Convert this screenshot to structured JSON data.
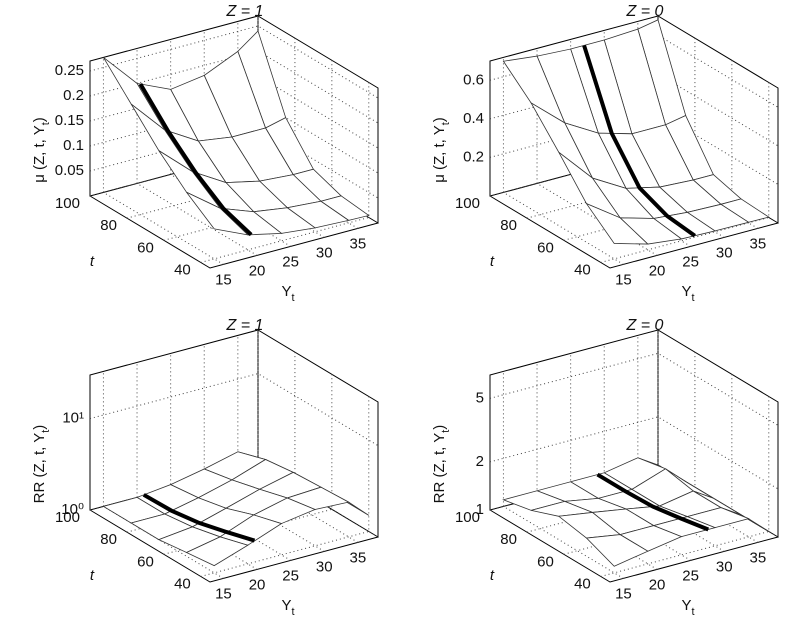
{
  "chart_data": [
    {
      "type": "surface",
      "title": "Z = 1",
      "zlabel": [
        "μ (Z, t, Y",
        "t",
        ")"
      ],
      "xlabel": [
        "Y",
        "t"
      ],
      "tlabel": "t",
      "x": [
        15,
        20,
        25,
        30,
        35,
        38
      ],
      "t": [
        40,
        55,
        70,
        85,
        100
      ],
      "z": [
        [
          0.06,
          0.03,
          0.015,
          0.008,
          0.005,
          0.004
        ],
        [
          0.1,
          0.05,
          0.025,
          0.015,
          0.01,
          0.01
        ],
        [
          0.15,
          0.09,
          0.05,
          0.035,
          0.03,
          0.03
        ],
        [
          0.21,
          0.14,
          0.1,
          0.09,
          0.09,
          0.1
        ],
        [
          0.27,
          0.2,
          0.17,
          0.18,
          0.21,
          0.24
        ]
      ],
      "xlim": [
        13,
        38
      ],
      "tlim": [
        35,
        100
      ],
      "zlim": [
        0,
        0.27
      ],
      "zscale": "linear",
      "xticks": [
        15,
        20,
        25,
        30,
        35
      ],
      "tticks": [
        40,
        60,
        80,
        100
      ],
      "zticks": [
        0.05,
        0.1,
        0.15,
        0.2,
        0.25
      ],
      "highlight_x": 20.5
    },
    {
      "type": "surface",
      "title": "Z = 0",
      "zlabel": [
        "μ (Z, t, Y",
        "t",
        ")"
      ],
      "xlabel": [
        "Y",
        "t"
      ],
      "tlabel": "t",
      "x": [
        15,
        20,
        25,
        30,
        35,
        38
      ],
      "t": [
        40,
        55,
        70,
        85,
        100
      ],
      "z": [
        [
          0.08,
          0.03,
          0.01,
          0.005,
          0.003,
          0.002
        ],
        [
          0.2,
          0.08,
          0.03,
          0.015,
          0.01,
          0.01
        ],
        [
          0.38,
          0.2,
          0.1,
          0.06,
          0.05,
          0.05
        ],
        [
          0.55,
          0.4,
          0.3,
          0.25,
          0.25,
          0.27
        ],
        [
          0.68,
          0.66,
          0.65,
          0.65,
          0.66,
          0.68
        ]
      ],
      "xlim": [
        13,
        38
      ],
      "tlim": [
        35,
        100
      ],
      "zlim": [
        0,
        0.7
      ],
      "zscale": "linear",
      "xticks": [
        15,
        20,
        25,
        30,
        35
      ],
      "tticks": [
        40,
        60,
        80,
        100
      ],
      "zticks": [
        0.2,
        0.4,
        0.6
      ],
      "highlight_x": 27
    },
    {
      "type": "surface",
      "title": "Z = 1",
      "zlabel": [
        "RR (Z, t, Y",
        "t",
        ")"
      ],
      "xlabel": [
        "Y",
        "t"
      ],
      "tlabel": "t",
      "x": [
        15,
        20,
        25,
        30,
        35,
        38
      ],
      "t": [
        40,
        55,
        70,
        85,
        100
      ],
      "z": [
        [
          1.2,
          1.6,
          2.2,
          2.5,
          2.4,
          1.5
        ],
        [
          1.1,
          1.3,
          1.8,
          2.2,
          2.3,
          1.5
        ],
        [
          1,
          1.1,
          1.4,
          1.8,
          2.2,
          1.4
        ],
        [
          1,
          1,
          1.2,
          1.5,
          2,
          1.3
        ],
        [
          1,
          1,
          1.1,
          1.3,
          1.6,
          1.2
        ]
      ],
      "xlim": [
        13,
        38
      ],
      "tlim": [
        35,
        100
      ],
      "zlim": [
        1,
        30
      ],
      "zscale": "log",
      "xticks": [
        15,
        20,
        25,
        30,
        35
      ],
      "tticks": [
        40,
        60,
        80,
        100
      ],
      "zticks": [
        {
          "value": 1,
          "label": "10⁰"
        },
        {
          "value": 10,
          "label": "10¹"
        }
      ],
      "highlight_x": 21
    },
    {
      "type": "surface",
      "title": "Z = 0",
      "zlabel": [
        "RR (Z, t, Y",
        "t",
        ")"
      ],
      "xlabel": [
        "Y",
        "t"
      ],
      "tlabel": "t",
      "x": [
        15,
        20,
        25,
        30,
        35,
        38
      ],
      "t": [
        40,
        55,
        70,
        85,
        100
      ],
      "z": [
        [
          1.1,
          1.2,
          1.3,
          1.3,
          1.3,
          1
        ],
        [
          1.3,
          1.2,
          1.2,
          1.2,
          1.2,
          1
        ],
        [
          1.4,
          1.3,
          1.2,
          1.1,
          1.2,
          1
        ],
        [
          1.2,
          1.2,
          1.1,
          1.1,
          1.3,
          1
        ],
        [
          1.1,
          1.1,
          1.1,
          1.1,
          1.2,
          1
        ]
      ],
      "xlim": [
        13,
        38
      ],
      "tlim": [
        35,
        100
      ],
      "zlim": [
        1,
        7
      ],
      "zscale": "log",
      "xticks": [
        15,
        20,
        25,
        30,
        35
      ],
      "tticks": [
        40,
        60,
        80,
        100
      ],
      "zticks": [
        1,
        2,
        5
      ],
      "highlight_x": 29
    }
  ]
}
